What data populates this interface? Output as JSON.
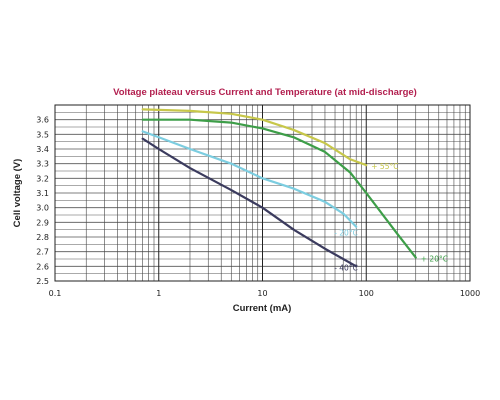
{
  "chart_data": {
    "type": "line",
    "title": "Voltage plateau versus Current and Temperature (at mid-discharge)",
    "xlabel": "Current (mA)",
    "ylabel": "Cell voltage (V)",
    "x_scale": "log",
    "xlim": [
      0.1,
      1000
    ],
    "ylim": [
      2.5,
      3.7
    ],
    "x_ticks": [
      "0.1",
      "1",
      "10",
      "100",
      "1000"
    ],
    "y_ticks": [
      "2.5",
      "2.6",
      "2.7",
      "2.8",
      "2.9",
      "3.0",
      "3.1",
      "3.2",
      "3.3",
      "3.4",
      "3.5",
      "3.6"
    ],
    "grid": true,
    "series": [
      {
        "name": "+ 55°C",
        "color": "#c7c74a",
        "points": [
          [
            0.7,
            3.67
          ],
          [
            2,
            3.66
          ],
          [
            5,
            3.64
          ],
          [
            10,
            3.6
          ],
          [
            20,
            3.53
          ],
          [
            40,
            3.44
          ],
          [
            70,
            3.33
          ],
          [
            100,
            3.29
          ]
        ]
      },
      {
        "name": "+ 20°C",
        "color": "#3d9e48",
        "points": [
          [
            0.7,
            3.6
          ],
          [
            2,
            3.6
          ],
          [
            5,
            3.58
          ],
          [
            10,
            3.54
          ],
          [
            20,
            3.48
          ],
          [
            40,
            3.38
          ],
          [
            70,
            3.24
          ],
          [
            100,
            3.1
          ],
          [
            200,
            2.82
          ],
          [
            300,
            2.66
          ]
        ]
      },
      {
        "name": "- 20°C",
        "color": "#7ccde0",
        "points": [
          [
            0.7,
            3.52
          ],
          [
            1,
            3.48
          ],
          [
            2,
            3.4
          ],
          [
            5,
            3.3
          ],
          [
            10,
            3.2
          ],
          [
            20,
            3.13
          ],
          [
            40,
            3.04
          ],
          [
            60,
            2.96
          ],
          [
            80,
            2.87
          ]
        ]
      },
      {
        "name": "- 40°C",
        "color": "#3b3b5e",
        "points": [
          [
            0.7,
            3.47
          ],
          [
            1,
            3.4
          ],
          [
            2,
            3.27
          ],
          [
            5,
            3.12
          ],
          [
            10,
            3.0
          ],
          [
            20,
            2.85
          ],
          [
            40,
            2.72
          ],
          [
            60,
            2.65
          ],
          [
            80,
            2.6
          ]
        ]
      }
    ]
  }
}
